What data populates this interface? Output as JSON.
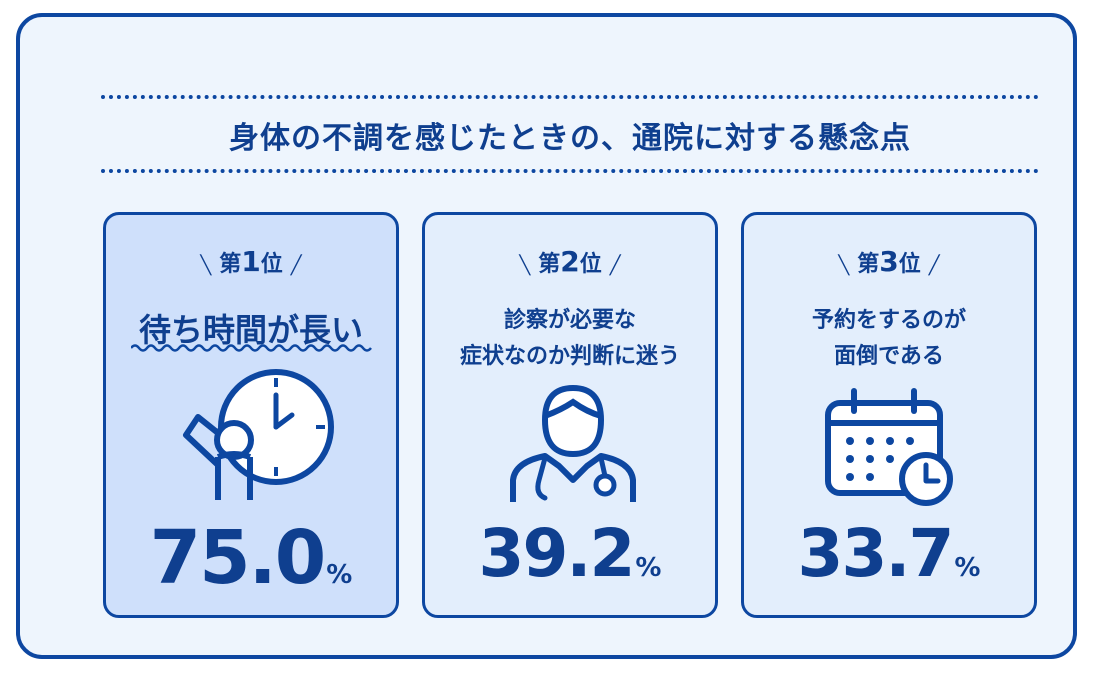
{
  "title": "身体の不調を感じたときの、通院に対する懸念点",
  "cards": [
    {
      "rank_prefix": "第",
      "rank_number": "1",
      "rank_suffix": "位",
      "label_line1": "待ち時間が長い",
      "label_line2": "",
      "value": "75.0",
      "unit": "%",
      "icon": "waiting-clock-icon"
    },
    {
      "rank_prefix": "第",
      "rank_number": "2",
      "rank_suffix": "位",
      "label_line1": "診察が必要な",
      "label_line2": "症状なのか判断に迷う",
      "value": "39.2",
      "unit": "%",
      "icon": "doctor-icon"
    },
    {
      "rank_prefix": "第",
      "rank_number": "3",
      "rank_suffix": "位",
      "label_line1": "予約をするのが",
      "label_line2": "面倒である",
      "value": "33.7",
      "unit": "%",
      "icon": "calendar-clock-icon"
    }
  ],
  "colors": {
    "primary": "#0d47a1",
    "text": "#0f3f8f",
    "panel": "#eef5fd",
    "card_first": "#cfe0fb",
    "card": "#e3eefc"
  }
}
